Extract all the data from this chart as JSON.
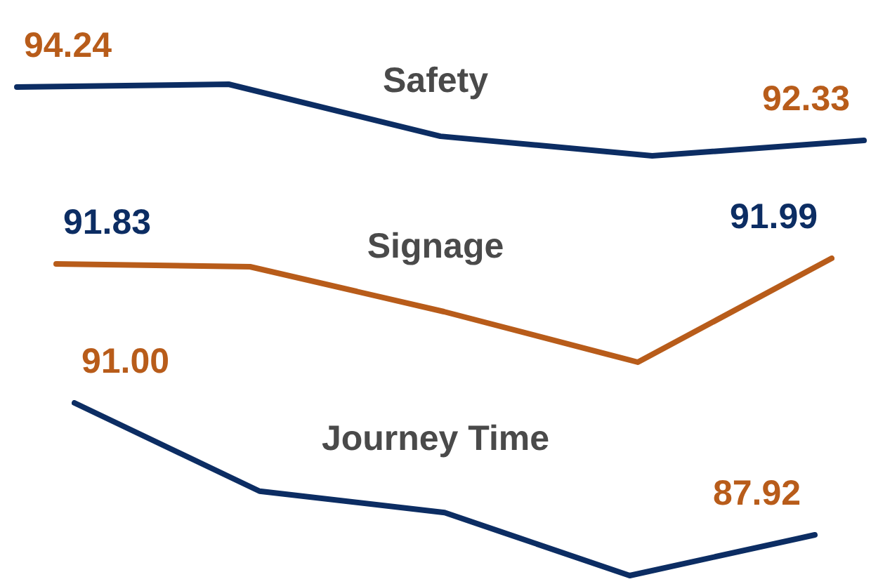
{
  "chart_data": [
    {
      "type": "line",
      "title": "Safety",
      "categories": [
        null,
        null,
        null,
        null,
        null
      ],
      "tick_labels": false,
      "marker": "none",
      "series": [
        {
          "color": "#0c2d63",
          "values": [
            94.24,
            94.34,
            92.48,
            91.78,
            92.33
          ],
          "value_labels": [
            "94.24",
            null,
            null,
            null,
            "92.33"
          ]
        }
      ]
    },
    {
      "type": "line",
      "title": "Signage",
      "categories": [
        null,
        null,
        null,
        null,
        null
      ],
      "tick_labels": false,
      "marker": "none",
      "series": [
        {
          "color": "#b85c1a",
          "values": [
            91.83,
            91.75,
            90.47,
            89.03,
            91.99
          ],
          "value_labels": [
            "91.83",
            null,
            null,
            null,
            "91.99"
          ]
        }
      ]
    },
    {
      "type": "line",
      "title": "Journey Time",
      "categories": [
        null,
        null,
        null,
        null,
        null
      ],
      "tick_labels": false,
      "marker": "none",
      "series": [
        {
          "color": "#0c2d63",
          "values": [
            91.0,
            88.94,
            88.44,
            86.97,
            87.92
          ],
          "value_labels": [
            "91.00",
            null,
            null,
            null,
            "87.92"
          ]
        }
      ]
    }
  ]
}
